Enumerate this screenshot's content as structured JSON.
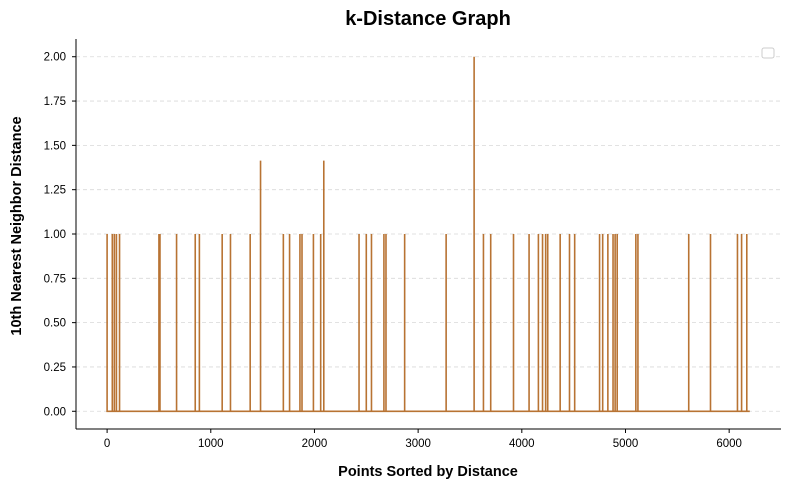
{
  "chart_data": {
    "type": "line",
    "title": "k-Distance Graph",
    "xlabel": "Points Sorted by Distance",
    "ylabel": "10th Nearest Neighbor Distance",
    "xlim": [
      -300,
      6500
    ],
    "ylim": [
      -0.1,
      2.1
    ],
    "xticks": [
      0,
      1000,
      2000,
      3000,
      4000,
      5000,
      6000
    ],
    "yticks": [
      0.0,
      0.25,
      0.5,
      0.75,
      1.0,
      1.25,
      1.5,
      1.75,
      2.0
    ],
    "ytick_labels": [
      "0.00",
      "0.25",
      "0.50",
      "0.75",
      "1.00",
      "1.25",
      "1.50",
      "1.75",
      "2.00"
    ],
    "grid": "y-dashed",
    "legend": "top-right (empty)",
    "line_color": "#b87333",
    "n_points": 6200,
    "baseline_value": 0,
    "spikes": [
      {
        "x": 0,
        "y": 1.0
      },
      {
        "x": 50,
        "y": 1.0
      },
      {
        "x": 70,
        "y": 1.0
      },
      {
        "x": 90,
        "y": 1.0
      },
      {
        "x": 120,
        "y": 1.0
      },
      {
        "x": 500,
        "y": 1.0
      },
      {
        "x": 510,
        "y": 1.0
      },
      {
        "x": 670,
        "y": 1.0
      },
      {
        "x": 850,
        "y": 1.0
      },
      {
        "x": 890,
        "y": 1.0
      },
      {
        "x": 1110,
        "y": 1.0
      },
      {
        "x": 1190,
        "y": 1.0
      },
      {
        "x": 1380,
        "y": 1.0
      },
      {
        "x": 1480,
        "y": 1.414
      },
      {
        "x": 1700,
        "y": 1.0
      },
      {
        "x": 1760,
        "y": 1.0
      },
      {
        "x": 1860,
        "y": 1.0
      },
      {
        "x": 1880,
        "y": 1.0
      },
      {
        "x": 1990,
        "y": 1.0
      },
      {
        "x": 2060,
        "y": 1.0
      },
      {
        "x": 2090,
        "y": 1.414
      },
      {
        "x": 2430,
        "y": 1.0
      },
      {
        "x": 2500,
        "y": 1.0
      },
      {
        "x": 2550,
        "y": 1.0
      },
      {
        "x": 2670,
        "y": 1.0
      },
      {
        "x": 2690,
        "y": 1.0
      },
      {
        "x": 2870,
        "y": 1.0
      },
      {
        "x": 3270,
        "y": 1.0
      },
      {
        "x": 3540,
        "y": 2.0
      },
      {
        "x": 3630,
        "y": 1.0
      },
      {
        "x": 3700,
        "y": 1.0
      },
      {
        "x": 3920,
        "y": 1.0
      },
      {
        "x": 4070,
        "y": 1.0
      },
      {
        "x": 4160,
        "y": 1.0
      },
      {
        "x": 4200,
        "y": 1.0
      },
      {
        "x": 4230,
        "y": 1.0
      },
      {
        "x": 4250,
        "y": 1.0
      },
      {
        "x": 4370,
        "y": 1.0
      },
      {
        "x": 4460,
        "y": 1.0
      },
      {
        "x": 4510,
        "y": 1.0
      },
      {
        "x": 4750,
        "y": 1.0
      },
      {
        "x": 4780,
        "y": 1.0
      },
      {
        "x": 4830,
        "y": 1.0
      },
      {
        "x": 4880,
        "y": 1.0
      },
      {
        "x": 4900,
        "y": 1.0
      },
      {
        "x": 4920,
        "y": 1.0
      },
      {
        "x": 5100,
        "y": 1.0
      },
      {
        "x": 5120,
        "y": 1.0
      },
      {
        "x": 5610,
        "y": 1.0
      },
      {
        "x": 5820,
        "y": 1.0
      },
      {
        "x": 6080,
        "y": 1.0
      },
      {
        "x": 6120,
        "y": 1.0
      },
      {
        "x": 6170,
        "y": 1.0
      }
    ]
  }
}
